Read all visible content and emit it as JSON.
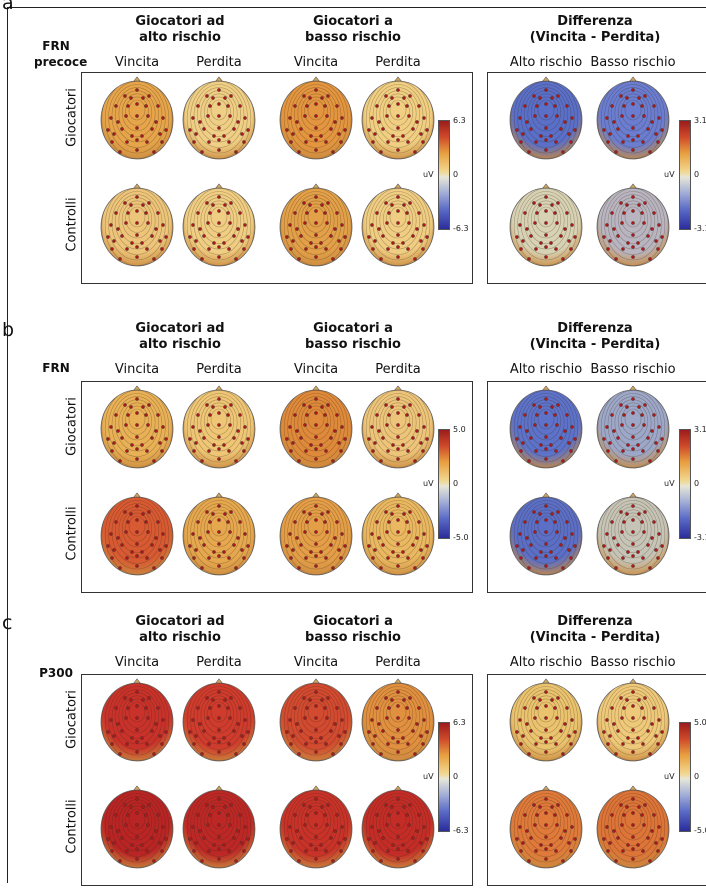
{
  "panels": [
    {
      "letter": "a",
      "label_line1": "FRN",
      "label_line2": "precoce",
      "group_high": "Giocatori ad\nalto rischio",
      "group_low": "Giocatori a\nbasso rischio",
      "group_diff": "Differenza\n(Vincita - Perdita)",
      "cols": [
        "Vincita",
        "Perdita",
        "Vincita",
        "Perdita",
        "Alto rischio",
        "Basso rischio"
      ],
      "rows": [
        "Giocatori",
        "Controlli"
      ],
      "scale_main": {
        "max": "6.3",
        "mid": "0",
        "min": "-6.3",
        "unit": "uV"
      },
      "scale_diff": {
        "max": "3.1",
        "mid": "0",
        "min": "-3.1",
        "unit": "uV"
      },
      "heads": [
        [
          "#e6a54a",
          "#efcf85",
          "#e3963f",
          "#f0cf82",
          "#5a6fc8",
          "#6a7dd0"
        ],
        [
          "#edc57a",
          "#efcd82",
          "#e2a048",
          "#efcd82",
          "#d8d2b4",
          "#b9b5c0"
        ]
      ]
    },
    {
      "letter": "b",
      "label_line1": "FRN",
      "label_line2": "",
      "group_high": "Giocatori ad\nalto rischio",
      "group_low": "Giocatori a\nbasso rischio",
      "group_diff": "Differenza\n(Vincita - Perdita)",
      "cols": [
        "Vincita",
        "Perdita",
        "Vincita",
        "Perdita",
        "Alto rischio",
        "Basso rischio"
      ],
      "rows": [
        "Giocatori",
        "Controlli"
      ],
      "scale_main": {
        "max": "5.0",
        "mid": "0",
        "min": "-5.0",
        "unit": "uV"
      },
      "scale_diff": {
        "max": "3.1",
        "mid": "0",
        "min": "-3.1",
        "unit": "uV"
      },
      "heads": [
        [
          "#e9b156",
          "#eec676",
          "#df8a3a",
          "#edc57a",
          "#5d72c9",
          "#9da7c8"
        ],
        [
          "#d85a32",
          "#e6a84e",
          "#e49e47",
          "#e9b860",
          "#5b6fc7",
          "#c6c4b6"
        ]
      ]
    },
    {
      "letter": "c",
      "label_line1": "P300",
      "label_line2": "",
      "group_high": "Giocatori ad\nalto rischio",
      "group_low": "Giocatori a\nbasso rischio",
      "group_diff": "Differenza\n(Vincita - Perdita)",
      "cols": [
        "Vincita",
        "Perdita",
        "Vincita",
        "Perdita",
        "Alto rischio",
        "Basso rischio"
      ],
      "rows": [
        "Giocatori",
        "Controlli"
      ],
      "scale_main": {
        "max": "6.3",
        "mid": "0",
        "min": "-6.3",
        "unit": "uV"
      },
      "scale_diff": {
        "max": "5.0",
        "mid": "0",
        "min": "-5.0",
        "unit": "uV"
      },
      "heads": [
        [
          "#c9322a",
          "#cf3b2c",
          "#d24a2f",
          "#e0903f",
          "#eac36f",
          "#eec97a"
        ],
        [
          "#b92424",
          "#bd2826",
          "#c83228",
          "#c42d27",
          "#df7a3a",
          "#dd7438"
        ]
      ]
    }
  ]
}
